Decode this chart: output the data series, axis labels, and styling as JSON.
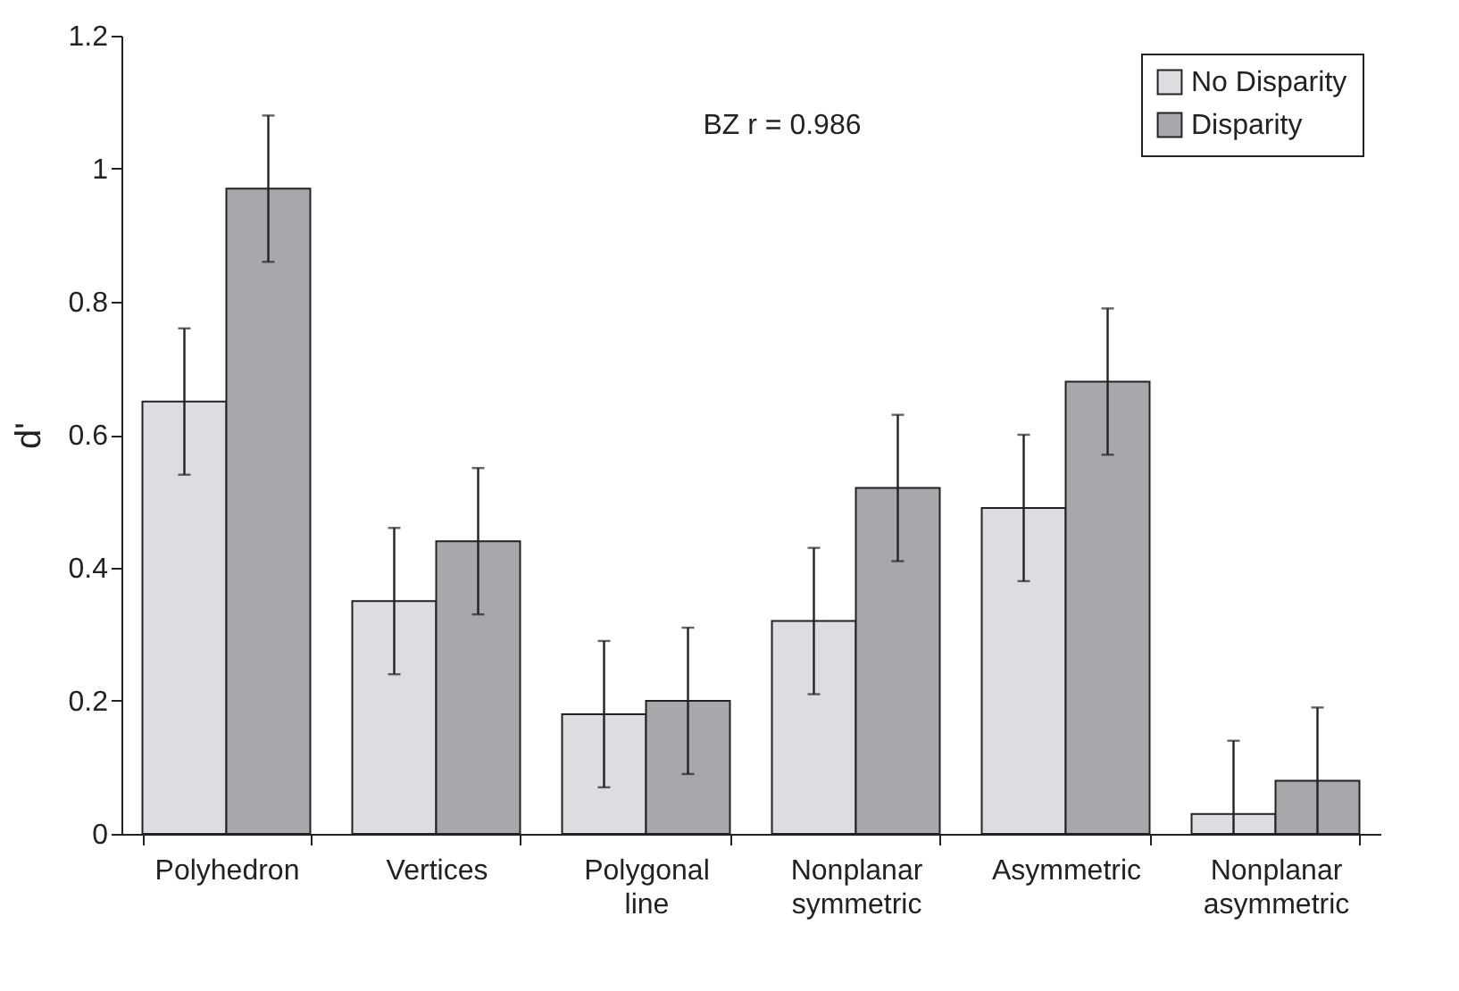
{
  "chart_data": {
    "type": "bar",
    "ylabel": "d'",
    "categories": [
      "Polyhedron",
      "Vertices",
      "Polygonal line",
      "Nonplanar symmetric",
      "Asymmetric",
      "Nonplanar asymmetric"
    ],
    "series": [
      {
        "name": "No Disparity",
        "color": "#dcdde0",
        "values": [
          0.65,
          0.35,
          0.18,
          0.32,
          0.49,
          0.03
        ],
        "errors": [
          0.11,
          0.11,
          0.11,
          0.11,
          0.11,
          [
            0,
            0.14
          ]
        ]
      },
      {
        "name": "Disparity",
        "color": "#a7a8ac",
        "values": [
          0.97,
          0.44,
          0.2,
          0.52,
          0.68,
          0.08
        ],
        "errors": [
          0.11,
          0.11,
          0.11,
          0.11,
          0.11,
          [
            0,
            0.19
          ]
        ]
      }
    ],
    "ylim": [
      0,
      1.2
    ],
    "yticks": [
      0,
      0.2,
      0.4,
      0.6,
      0.8,
      1,
      1.2
    ],
    "grid": false,
    "legend": "top right",
    "annotations": [
      "BZ  r = 0.986"
    ]
  }
}
